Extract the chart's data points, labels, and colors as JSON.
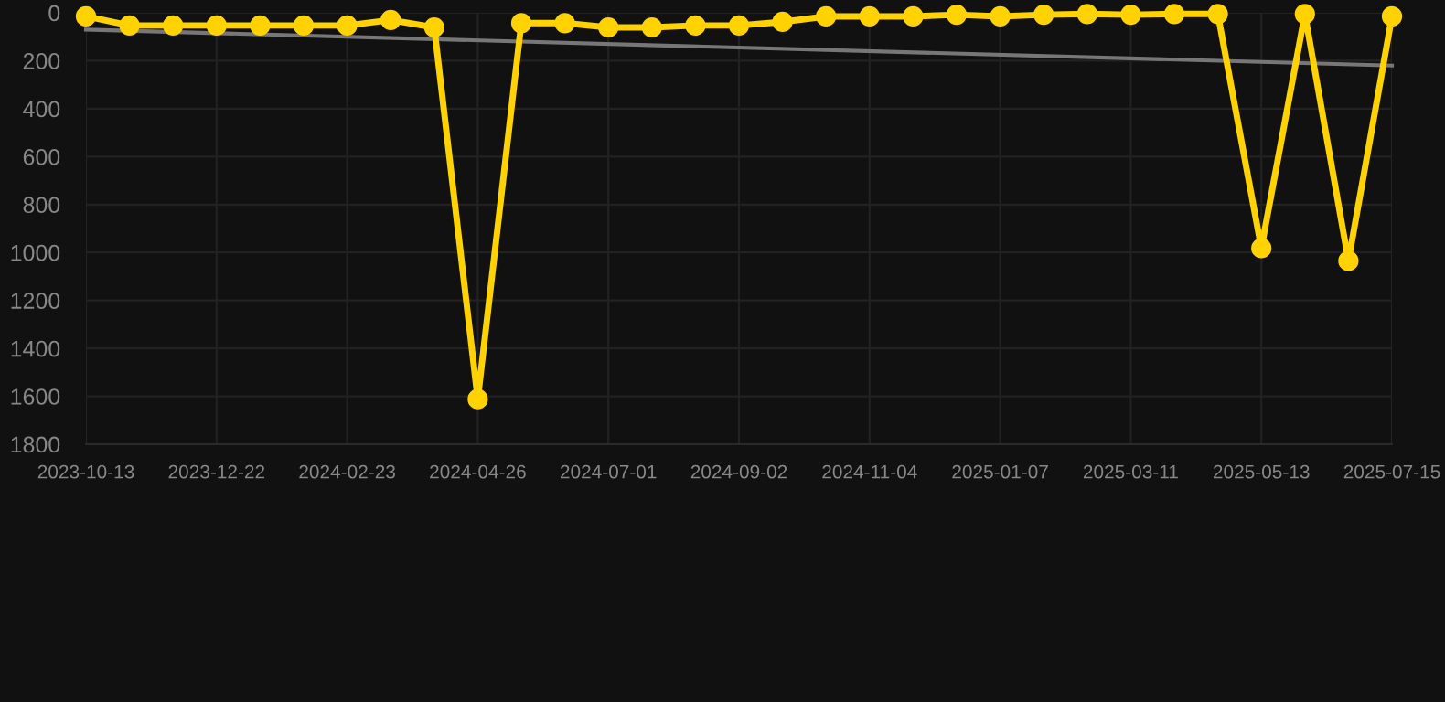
{
  "chart_data": {
    "type": "line",
    "categories": [
      "2023-10-13",
      null,
      null,
      "2023-12-22",
      null,
      null,
      "2024-02-23",
      null,
      null,
      "2024-04-26",
      null,
      null,
      "2024-07-01",
      null,
      null,
      "2024-09-02",
      null,
      null,
      "2024-11-04",
      null,
      null,
      "2025-01-07",
      null,
      null,
      "2025-03-11",
      null,
      null,
      "2025-05-13",
      null,
      null,
      "2025-07-15"
    ],
    "series": [
      {
        "color": "#ffd200",
        "marker": "circle",
        "values": [
          15,
          53,
          53,
          53,
          53,
          53,
          53,
          30,
          61,
          1612,
          43,
          43,
          61,
          61,
          53,
          53,
          38,
          15,
          15,
          15,
          8,
          15,
          8,
          5,
          8,
          5,
          5,
          982,
          5,
          1035,
          15
        ]
      },
      {
        "type": "line",
        "color": "#777777",
        "marker": "none",
        "values": [
          70,
          null,
          null,
          null,
          null,
          null,
          null,
          null,
          null,
          null,
          null,
          null,
          null,
          null,
          null,
          null,
          null,
          null,
          null,
          null,
          null,
          null,
          null,
          null,
          null,
          null,
          null,
          null,
          null,
          null,
          220
        ]
      }
    ],
    "ylim": [
      1800,
      0
    ],
    "yticks": [
      0,
      200,
      400,
      600,
      800,
      1000,
      1200,
      1400,
      1600,
      1800
    ],
    "grid": true,
    "line_style": "solid"
  }
}
